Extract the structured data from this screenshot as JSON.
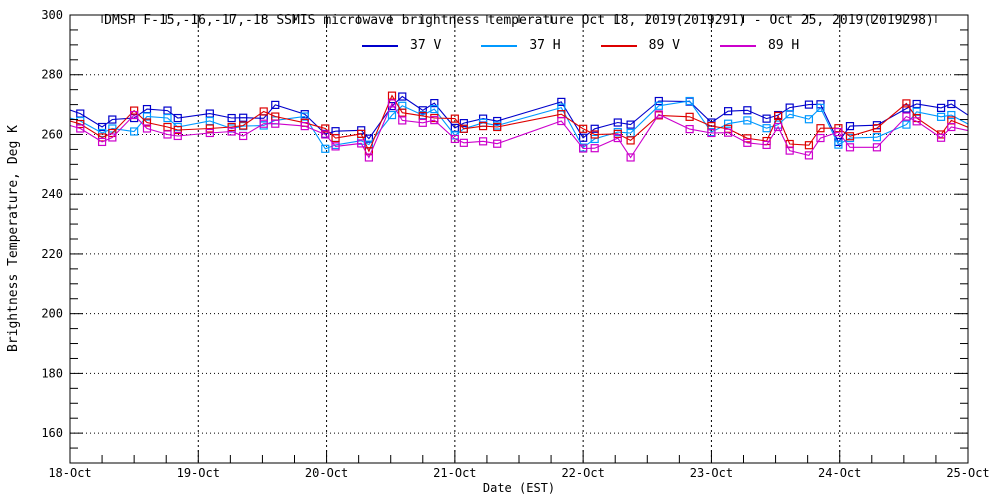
{
  "title": "DMSP F-15,-16,-17,-18 SSMIS microwave brightness temperature Oct 18, 2019(2019291) - Oct 25, 2019(2019298)",
  "chart_data": {
    "type": "line",
    "title": "DMSP F-15,-16,-17,-18 SSMIS microwave brightness temperature Oct 18, 2019(2019291) - Oct 25, 2019(2019298)",
    "xlabel": "Date (EST)",
    "ylabel": "Brightness Temperature, Deg K",
    "marker": "open-square",
    "grid": {
      "horizontal": "dotted",
      "vertical": "dashed"
    },
    "legend_position": "top-inside",
    "frame_color": "#000000",
    "xlim": [
      0,
      7
    ],
    "ylim": [
      150,
      300
    ],
    "x_unit": "days after 18-Oct 00:00 EST",
    "x_tick_labels": [
      "18-Oct",
      "19-Oct",
      "20-Oct",
      "21-Oct",
      "22-Oct",
      "23-Oct",
      "24-Oct",
      "25-Oct"
    ],
    "x_minor_step": 0.25,
    "y_major_ticks": [
      160,
      180,
      200,
      220,
      240,
      260,
      280,
      300
    ],
    "y_minor_step": 5,
    "x": [
      0.0,
      0.08,
      0.25,
      0.33,
      0.5,
      0.6,
      0.76,
      0.84,
      1.09,
      1.26,
      1.35,
      1.51,
      1.6,
      1.83,
      1.99,
      2.07,
      2.27,
      2.33,
      2.51,
      2.59,
      2.75,
      2.84,
      3.0,
      3.07,
      3.22,
      3.33,
      3.83,
      4.0,
      4.09,
      4.27,
      4.37,
      4.59,
      4.83,
      5.0,
      5.13,
      5.28,
      5.43,
      5.52,
      5.61,
      5.76,
      5.85,
      5.99,
      6.08,
      6.29,
      6.52,
      6.6,
      6.79,
      6.87,
      7.0
    ],
    "series": [
      {
        "name": "37 V",
        "color": "#0000cc",
        "values": [
          268.2,
          267.0,
          262.5,
          265.0,
          265.5,
          268.5,
          268.0,
          265.5,
          267.0,
          265.5,
          265.6,
          265.4,
          269.9,
          266.8,
          260.2,
          261.1,
          261.4,
          258.6,
          269.5,
          272.7,
          268.1,
          270.5,
          262.2,
          263.8,
          265.3,
          264.5,
          270.9,
          258.9,
          261.9,
          264.0,
          263.3,
          271.2,
          271.0,
          264.0,
          267.8,
          268.1,
          265.3,
          266.5,
          269.0,
          270.0,
          270.1,
          257.5,
          262.8,
          263.1,
          268.7,
          270.2,
          268.9,
          270.2,
          266.5
        ]
      },
      {
        "name": "37 H",
        "color": "#0099ff",
        "values": [
          265.5,
          264.5,
          260.5,
          262.0,
          261.0,
          266.0,
          265.5,
          262.5,
          264.5,
          262.0,
          262.8,
          263.0,
          264.7,
          266.0,
          255.2,
          256.5,
          257.9,
          256.6,
          266.5,
          269.6,
          266.5,
          268.5,
          259.7,
          261.9,
          263.9,
          263.0,
          269.0,
          255.6,
          258.5,
          260.8,
          260.5,
          269.6,
          271.2,
          260.8,
          263.6,
          264.7,
          262.1,
          263.3,
          266.8,
          265.1,
          268.9,
          256.6,
          258.8,
          259.1,
          263.3,
          267.6,
          265.9,
          266.5,
          263.5
        ]
      },
      {
        "name": "89 V",
        "color": "#dd0000",
        "values": [
          264.5,
          263.5,
          259.0,
          260.5,
          268.0,
          264.0,
          262.5,
          261.5,
          262.0,
          262.5,
          263.0,
          267.7,
          266.0,
          263.9,
          262.0,
          258.8,
          260.2,
          254.4,
          273.0,
          267.3,
          266.2,
          265.5,
          265.3,
          261.9,
          262.8,
          262.5,
          266.8,
          261.9,
          260.0,
          260.2,
          258.0,
          266.4,
          265.9,
          262.8,
          261.9,
          258.7,
          257.8,
          266.2,
          256.8,
          256.4,
          262.1,
          262.1,
          259.4,
          262.1,
          270.4,
          265.5,
          260.0,
          264.7,
          262.4
        ]
      },
      {
        "name": "89 H",
        "color": "#cc00cc",
        "values": [
          263.0,
          262.0,
          257.5,
          259.0,
          266.5,
          262.0,
          260.0,
          259.5,
          260.5,
          261.0,
          259.5,
          263.6,
          263.6,
          262.8,
          260.0,
          256.0,
          257.0,
          252.3,
          270.4,
          264.7,
          263.9,
          264.8,
          258.5,
          257.2,
          257.7,
          256.9,
          264.5,
          255.3,
          255.4,
          258.8,
          252.3,
          266.7,
          261.8,
          260.5,
          260.6,
          257.2,
          256.5,
          262.5,
          254.6,
          253.0,
          258.8,
          260.8,
          255.7,
          255.7,
          266.0,
          264.4,
          258.9,
          262.5,
          261.3
        ]
      }
    ]
  }
}
